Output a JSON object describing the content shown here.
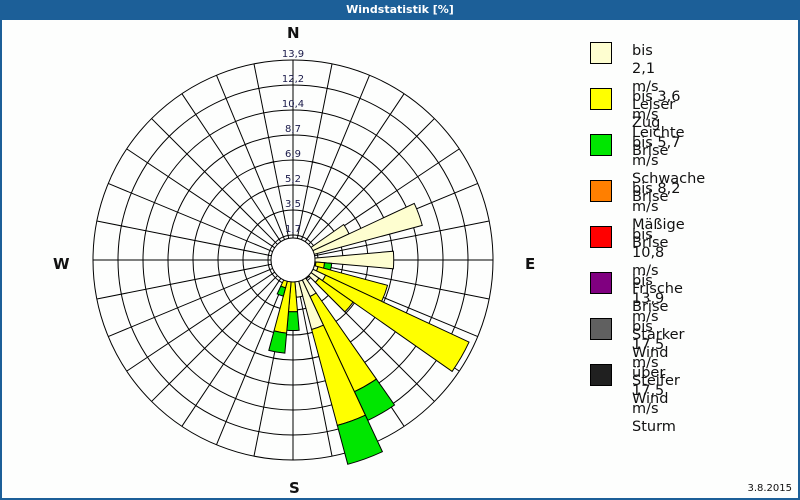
{
  "window": {
    "title": "Windstatistik [%]"
  },
  "compass": {
    "n": "N",
    "e": "E",
    "s": "S",
    "w": "W"
  },
  "date": "3.8.2015",
  "legend": [
    {
      "label": "bis 2,1 m/s",
      "name": "Leiser Zug",
      "color": "#fefed0"
    },
    {
      "label": "bis 3,6 m/s",
      "name": "Leichte Brise",
      "color": "#ffff00"
    },
    {
      "label": "bis 5,7 m/s",
      "name": "Schwache Brise",
      "color": "#00e600"
    },
    {
      "label": "bis 8,2 m/s",
      "name": "Mäßige Brise",
      "color": "#ff7f00"
    },
    {
      "label": "bis 10,8 m/s",
      "name": "Frische Brise",
      "color": "#ff0000"
    },
    {
      "label": "bis 13,9 m/s",
      "name": "Starker Wind",
      "color": "#800080"
    },
    {
      "label": "bis 17,5 m/s",
      "name": "Steifer Wind",
      "color": "#606060"
    },
    {
      "label": "über 17,5 m/s",
      "name": "Sturm",
      "color": "#202020"
    }
  ],
  "chart_data": {
    "type": "wind_rose",
    "title": "Windstatistik [%]",
    "radial_ticks": [
      "1,7",
      "3,5",
      "5,2",
      "6,9",
      "8,7",
      "10,4",
      "12,2",
      "13,9"
    ],
    "radial_max": 13.9,
    "sector_width_deg": 10,
    "series_names": [
      "Leiser Zug",
      "Leichte Brise",
      "Schwache Brise",
      "Mäßige Brise",
      "Frische Brise",
      "Starker Wind",
      "Steifer Wind",
      "Sturm"
    ],
    "sectors": [
      {
        "dir": 60,
        "values": [
          4.3,
          0,
          0,
          0,
          0,
          0,
          0,
          0
        ]
      },
      {
        "dir": 70,
        "values": [
          9.3,
          0,
          0,
          0,
          0,
          0,
          0,
          0
        ]
      },
      {
        "dir": 90,
        "values": [
          7.0,
          0,
          0,
          0,
          0,
          0,
          0,
          0
        ]
      },
      {
        "dir": 100,
        "values": [
          1.6,
          0.6,
          0.5,
          0,
          0,
          0,
          0,
          0
        ]
      },
      {
        "dir": 110,
        "values": [
          1.8,
          5.0,
          0,
          0,
          0,
          0,
          0,
          0
        ]
      },
      {
        "dir": 120,
        "values": [
          2.5,
          11.0,
          0,
          0,
          0,
          0,
          0,
          0
        ]
      },
      {
        "dir": 130,
        "values": [
          2.2,
          2.9,
          0,
          0,
          0,
          0,
          0,
          0
        ]
      },
      {
        "dir": 140,
        "values": [
          1.6,
          0,
          0,
          0,
          0,
          0,
          0,
          0
        ]
      },
      {
        "dir": 150,
        "values": [
          2.8,
          7.3,
          2.2,
          0,
          0,
          0,
          0,
          0
        ]
      },
      {
        "dir": 160,
        "values": [
          5.0,
          6.9,
          2.8,
          0,
          0,
          0,
          0,
          0
        ]
      },
      {
        "dir": 170,
        "values": [
          2.6,
          0,
          0,
          0,
          0,
          0,
          0,
          0
        ]
      },
      {
        "dir": 180,
        "values": [
          1.2,
          2.4,
          1.3,
          0,
          0,
          0,
          0,
          0
        ]
      },
      {
        "dir": 190,
        "values": [
          0.6,
          4.5,
          1.4,
          0,
          0,
          0,
          0,
          0
        ]
      },
      {
        "dir": 200,
        "values": [
          0.5,
          1.5,
          0.6,
          0,
          0,
          0,
          0,
          0
        ]
      },
      {
        "dir": 210,
        "values": [
          0.4,
          0.6,
          0,
          0,
          0,
          0,
          0,
          0
        ]
      },
      {
        "dir": 300,
        "values": [
          0.5,
          0,
          0,
          0,
          0,
          0,
          0,
          0
        ]
      }
    ]
  }
}
